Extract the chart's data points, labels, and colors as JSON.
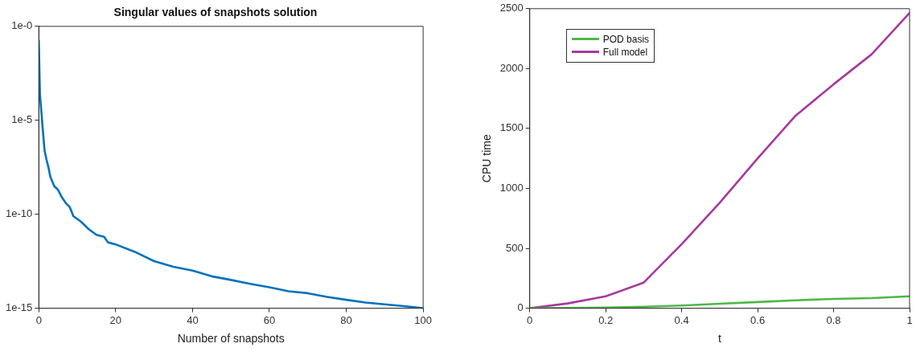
{
  "chart_data": [
    {
      "type": "line",
      "title": "Singular values of snapshots solution",
      "xlabel": "Number of snapshots",
      "x": [
        0,
        0.3,
        1,
        1.5,
        2,
        2.5,
        3,
        4,
        5,
        6,
        7,
        8,
        9,
        11,
        13,
        15,
        17,
        18,
        20,
        25,
        30,
        35,
        40,
        45,
        50,
        55,
        60,
        65,
        70,
        75,
        80,
        85,
        90,
        95,
        100
      ],
      "series": [
        {
          "color": "#0072bd",
          "values": [
            0.17,
            0.00025,
            4e-06,
            2.5e-07,
            8e-08,
            3.2e-08,
            1e-08,
            3.2e-09,
            2e-09,
            8e-10,
            4e-10,
            2.5e-10,
            8e-11,
            4e-11,
            1.6e-11,
            8e-12,
            6.3e-12,
            3.2e-12,
            2.5e-12,
            1e-12,
            3.2e-13,
            1.6e-13,
            1e-13,
            5e-14,
            3.2e-14,
            2e-14,
            1.3e-14,
            8e-15,
            6.3e-15,
            4e-15,
            2.8e-15,
            2e-15,
            1.6e-15,
            1.3e-15,
            1e-15
          ]
        }
      ],
      "log": "y",
      "xlim": [
        0,
        100
      ],
      "xticks": [
        0,
        20,
        40,
        60,
        80,
        100
      ],
      "ylim": [
        1e-15,
        1
      ],
      "yticks": [
        {
          "value": 1e-15,
          "label": "1e-15"
        },
        {
          "value": 1e-10,
          "label": "1e-10"
        },
        {
          "value": 1e-05,
          "label": "1e-5"
        },
        {
          "value": 1,
          "label": "1e-0"
        }
      ],
      "grid": false,
      "legend": false
    },
    {
      "type": "line",
      "xlabel": "t",
      "ylabel": "CPU time",
      "x": [
        0,
        0.1,
        0.2,
        0.3,
        0.4,
        0.5,
        0.6,
        0.7,
        0.8,
        0.9,
        1
      ],
      "series": [
        {
          "name": "POD basis",
          "color": "#4db848",
          "values": [
            0,
            2,
            5,
            12,
            22,
            38,
            52,
            66,
            78,
            84,
            100
          ]
        },
        {
          "name": "Full model",
          "color": "#a63a9e",
          "values": [
            0,
            40,
            100,
            214,
            535,
            880,
            1250,
            1607,
            1869,
            2119,
            2464
          ]
        }
      ],
      "xlim": [
        0,
        1
      ],
      "xticks": [
        0,
        0.2,
        0.4,
        0.6,
        0.8,
        1
      ],
      "ylim": [
        0,
        2500
      ],
      "yticks": [
        0,
        500,
        1000,
        1500,
        2000,
        2500
      ],
      "grid": false,
      "legend": "top left"
    }
  ]
}
